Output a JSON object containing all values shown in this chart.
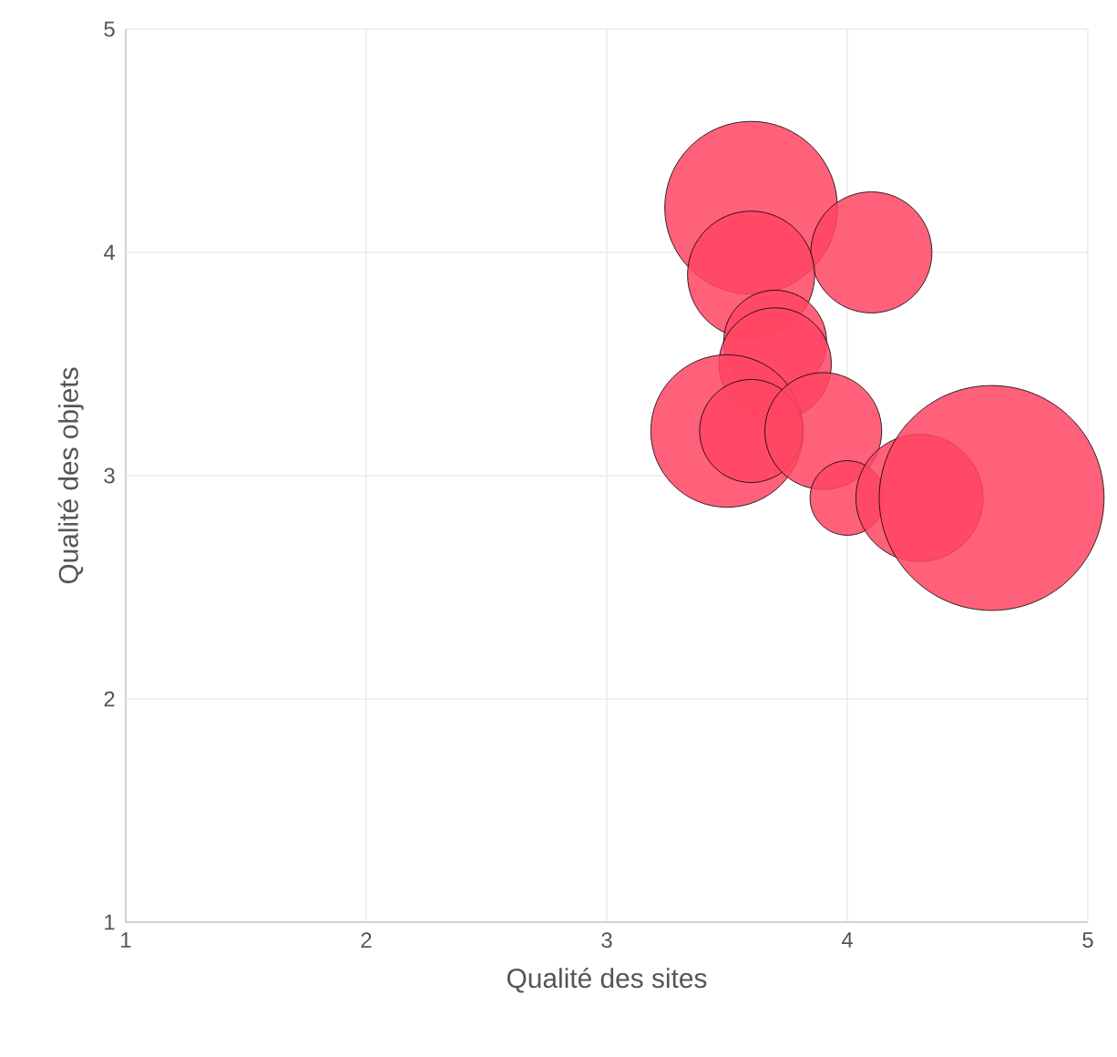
{
  "chart_data": {
    "type": "bubble",
    "xlabel": "Qualité des sites",
    "ylabel": "Qualité des objets",
    "x": [
      3.6,
      4.1,
      3.6,
      3.7,
      3.7,
      3.5,
      3.6,
      3.9,
      4.0,
      4.3,
      4.6
    ],
    "values": [
      4.2,
      4.0,
      3.9,
      3.6,
      3.5,
      3.2,
      3.2,
      3.2,
      2.9,
      2.9,
      2.9
    ],
    "sizes": [
      0.59,
      0.29,
      0.32,
      0.21,
      0.25,
      0.46,
      0.21,
      0.27,
      0.11,
      0.32,
      1
    ],
    "color": "#ff4563",
    "xlim": [
      1,
      5
    ],
    "ylim": [
      1,
      5
    ],
    "xticks": [
      1,
      2,
      3,
      4,
      5
    ],
    "yticks": [
      1,
      2,
      3,
      4,
      5
    ],
    "grid": true
  }
}
